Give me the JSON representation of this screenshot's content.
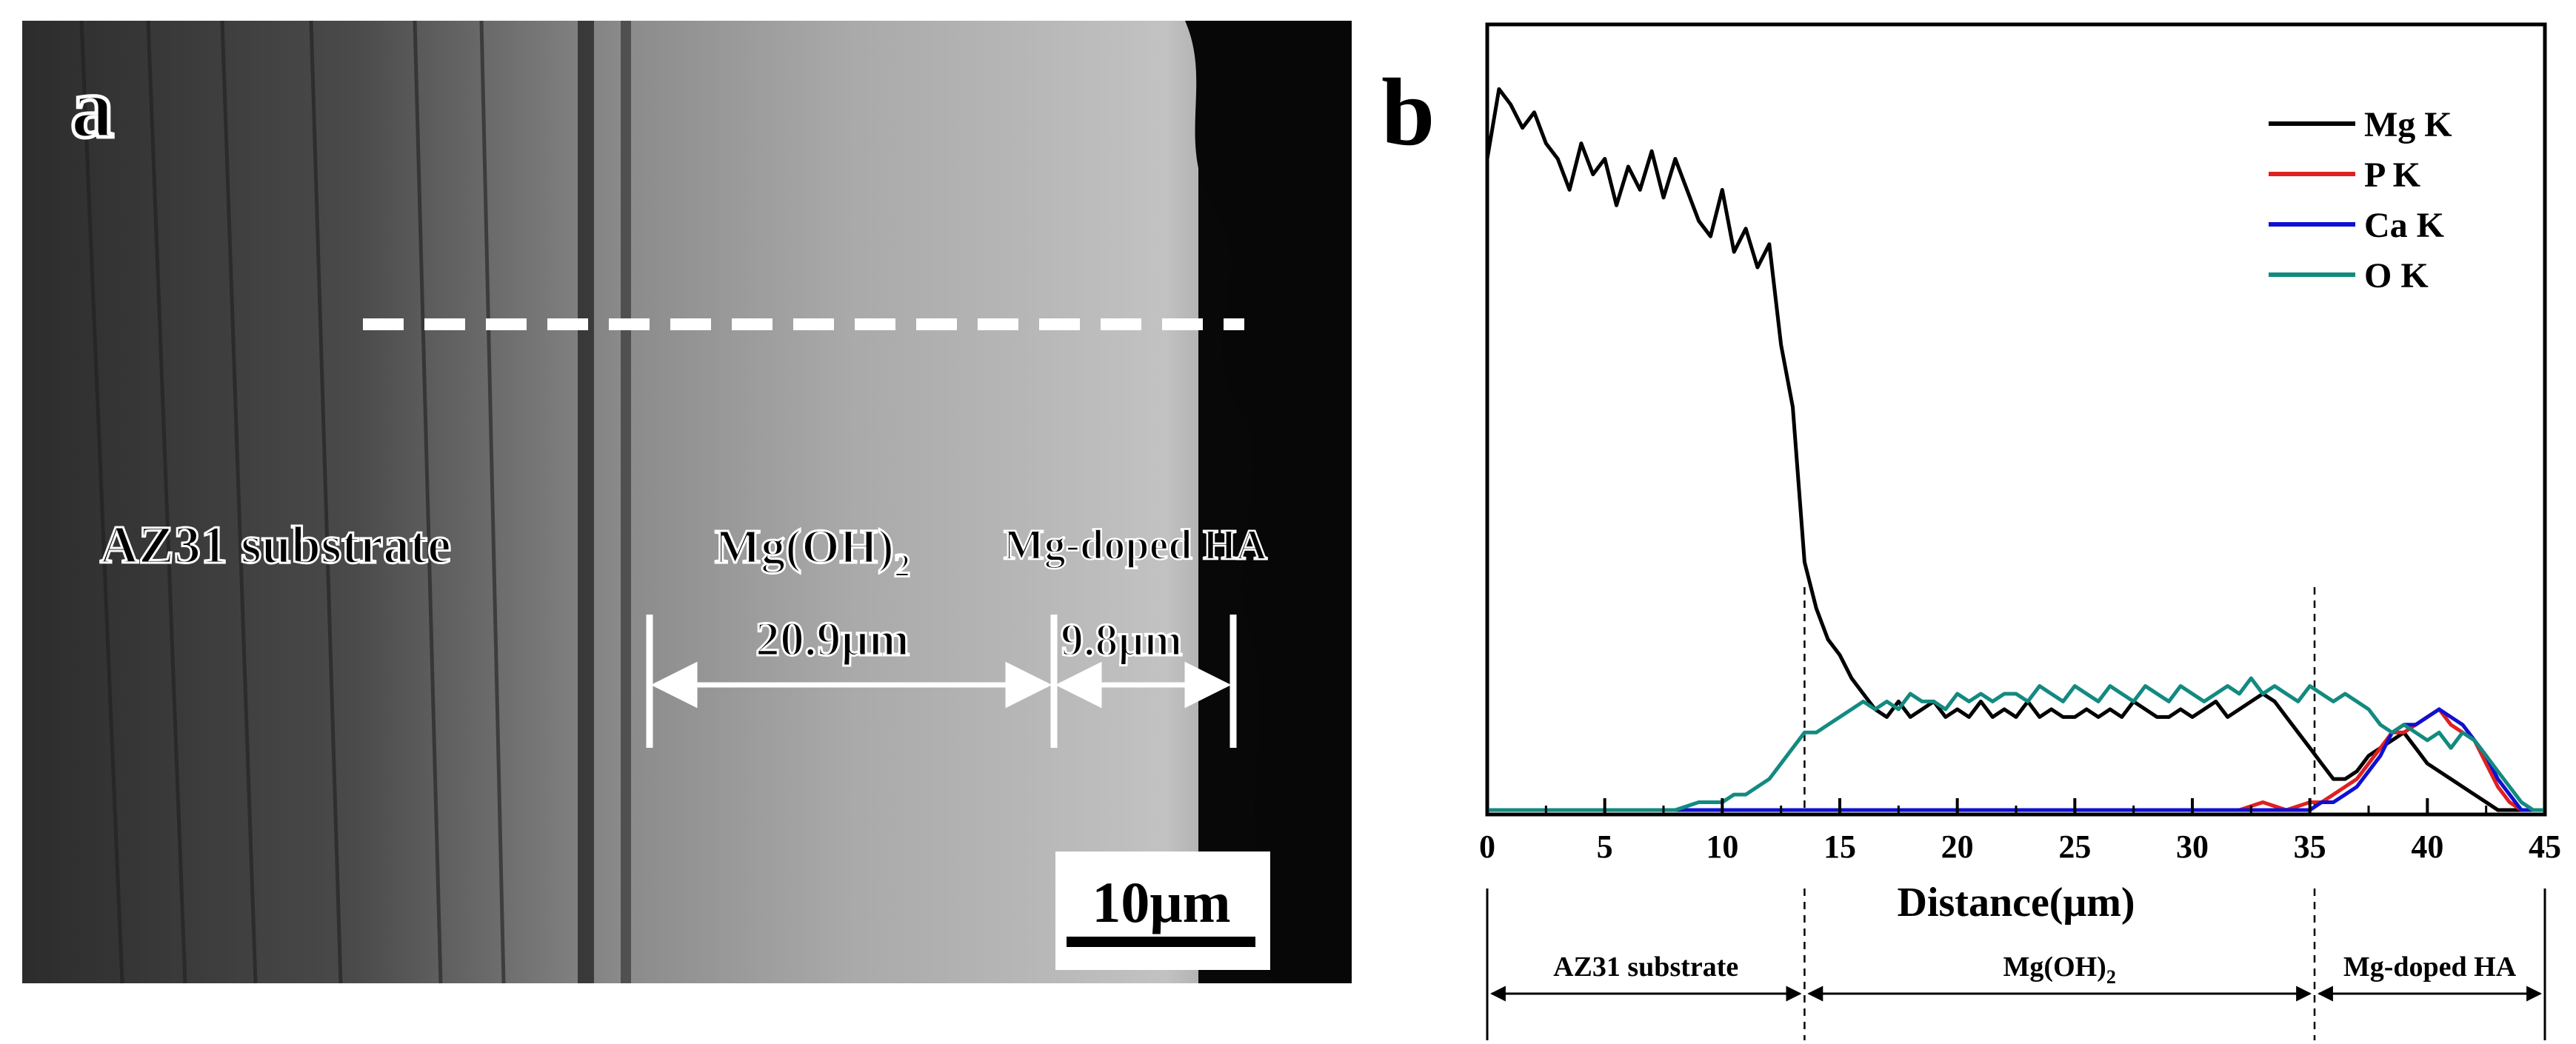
{
  "panel_a": {
    "label": "a",
    "region_substrate": "AZ31 substrate",
    "region_hydroxide_main": "Mg(OH)",
    "region_hydroxide_sub": "2",
    "region_coating": "Mg-doped HA",
    "thickness_hydroxide": "20.9μm",
    "thickness_coating": "9.8μm",
    "scale_bar": "10μm"
  },
  "chart_data": {
    "type": "line",
    "panel_label": "b",
    "title": "",
    "xlabel": "Distance(μm)",
    "ylabel": "",
    "xlim": [
      0,
      45
    ],
    "ylim": [
      0,
      1
    ],
    "x_ticks": [
      "0",
      "5",
      "10",
      "15",
      "20",
      "25",
      "30",
      "35",
      "40",
      "45"
    ],
    "grid": false,
    "legend_position": "top-right",
    "boundaries_um": [
      13.5,
      35.2
    ],
    "regions": [
      {
        "label_main": "AZ31 substrate",
        "label_sub": "",
        "from": 0,
        "to": 13.5
      },
      {
        "label_main": "Mg(OH)",
        "label_sub": "2",
        "from": 13.5,
        "to": 35.2
      },
      {
        "label_main": "Mg-doped HA",
        "label_sub": "",
        "from": 35.2,
        "to": 45
      }
    ],
    "series": [
      {
        "name": "Mg K",
        "color": "#000000",
        "x": [
          0,
          0.5,
          1,
          1.5,
          2,
          2.5,
          3,
          3.5,
          4,
          4.5,
          5,
          5.5,
          6,
          6.5,
          7,
          7.5,
          8,
          8.5,
          9,
          9.5,
          10,
          10.5,
          11,
          11.5,
          12,
          12.5,
          13,
          13.5,
          14,
          14.5,
          15,
          15.5,
          16,
          16.5,
          17,
          17.5,
          18,
          18.5,
          19,
          19.5,
          20,
          20.5,
          21,
          21.5,
          22,
          22.5,
          23,
          23.5,
          24,
          24.5,
          25,
          25.5,
          26,
          26.5,
          27,
          27.5,
          28,
          28.5,
          29,
          29.5,
          30,
          30.5,
          31,
          31.5,
          32,
          32.5,
          33,
          33.5,
          34,
          34.5,
          35,
          35.5,
          36,
          36.5,
          37,
          37.5,
          38,
          38.5,
          39,
          39.5,
          40,
          40.5,
          41,
          41.5,
          42,
          42.5,
          43,
          43.5,
          44,
          44.5,
          45
        ],
        "y": [
          0.84,
          0.93,
          0.91,
          0.88,
          0.9,
          0.86,
          0.84,
          0.8,
          0.86,
          0.82,
          0.84,
          0.78,
          0.83,
          0.8,
          0.85,
          0.79,
          0.84,
          0.8,
          0.76,
          0.74,
          0.8,
          0.72,
          0.75,
          0.7,
          0.73,
          0.6,
          0.52,
          0.32,
          0.26,
          0.22,
          0.2,
          0.17,
          0.15,
          0.13,
          0.12,
          0.14,
          0.12,
          0.13,
          0.14,
          0.12,
          0.13,
          0.12,
          0.14,
          0.12,
          0.13,
          0.12,
          0.14,
          0.12,
          0.13,
          0.12,
          0.12,
          0.13,
          0.12,
          0.13,
          0.12,
          0.14,
          0.13,
          0.12,
          0.12,
          0.13,
          0.12,
          0.13,
          0.14,
          0.12,
          0.13,
          0.14,
          0.15,
          0.14,
          0.12,
          0.1,
          0.08,
          0.06,
          0.04,
          0.04,
          0.05,
          0.07,
          0.08,
          0.09,
          0.1,
          0.08,
          0.06,
          0.05,
          0.04,
          0.03,
          0.02,
          0.01,
          0.0,
          0.0,
          0.0,
          0.0,
          0.0
        ]
      },
      {
        "name": "P K",
        "color": "#e02020",
        "x": [
          0,
          2,
          4,
          6,
          8,
          10,
          12,
          14,
          16,
          18,
          20,
          22,
          24,
          26,
          28,
          30,
          32,
          33,
          34,
          35,
          35.5,
          36,
          36.5,
          37,
          37.5,
          38,
          38.5,
          39,
          39.5,
          40,
          40.5,
          41,
          41.5,
          42,
          42.5,
          43,
          43.5,
          44,
          44.5,
          45
        ],
        "y": [
          0.0,
          0.0,
          0.0,
          0.0,
          0.0,
          0.0,
          0.0,
          0.0,
          0.0,
          0.0,
          0.0,
          0.0,
          0.0,
          0.0,
          0.0,
          0.0,
          0.0,
          0.01,
          0.0,
          0.01,
          0.01,
          0.02,
          0.03,
          0.04,
          0.06,
          0.08,
          0.1,
          0.1,
          0.11,
          0.12,
          0.13,
          0.11,
          0.1,
          0.09,
          0.06,
          0.03,
          0.01,
          0.0,
          0.0,
          0.0
        ]
      },
      {
        "name": "Ca K",
        "color": "#1010d0",
        "x": [
          0,
          2,
          4,
          6,
          8,
          10,
          12,
          14,
          16,
          18,
          20,
          22,
          24,
          26,
          28,
          30,
          32,
          33,
          34,
          35,
          35.5,
          36,
          36.5,
          37,
          37.5,
          38,
          38.5,
          39,
          39.5,
          40,
          40.5,
          41,
          41.5,
          42,
          42.5,
          43,
          43.5,
          44,
          44.5,
          45
        ],
        "y": [
          0.0,
          0.0,
          0.0,
          0.0,
          0.0,
          0.0,
          0.0,
          0.0,
          0.0,
          0.0,
          0.0,
          0.0,
          0.0,
          0.0,
          0.0,
          0.0,
          0.0,
          0.0,
          0.0,
          0.0,
          0.01,
          0.01,
          0.02,
          0.03,
          0.05,
          0.07,
          0.1,
          0.11,
          0.11,
          0.12,
          0.13,
          0.12,
          0.11,
          0.09,
          0.07,
          0.04,
          0.02,
          0.0,
          0.0,
          0.0
        ]
      },
      {
        "name": "O K",
        "color": "#138a80",
        "x": [
          0,
          2,
          4,
          6,
          8,
          9,
          10,
          10.5,
          11,
          11.5,
          12,
          12.5,
          13,
          13.5,
          14,
          14.5,
          15,
          15.5,
          16,
          16.5,
          17,
          17.5,
          18,
          18.5,
          19,
          19.5,
          20,
          20.5,
          21,
          21.5,
          22,
          22.5,
          23,
          23.5,
          24,
          24.5,
          25,
          25.5,
          26,
          26.5,
          27,
          27.5,
          28,
          28.5,
          29,
          29.5,
          30,
          30.5,
          31,
          31.5,
          32,
          32.5,
          33,
          33.5,
          34,
          34.5,
          35,
          35.5,
          36,
          36.5,
          37,
          37.5,
          38,
          38.5,
          39,
          39.5,
          40,
          40.5,
          41,
          41.5,
          42,
          42.5,
          43,
          43.5,
          44,
          44.5,
          45
        ],
        "y": [
          0.0,
          0.0,
          0.0,
          0.0,
          0.0,
          0.01,
          0.01,
          0.02,
          0.02,
          0.03,
          0.04,
          0.06,
          0.08,
          0.1,
          0.1,
          0.11,
          0.12,
          0.13,
          0.14,
          0.13,
          0.14,
          0.13,
          0.15,
          0.14,
          0.14,
          0.13,
          0.15,
          0.14,
          0.15,
          0.14,
          0.15,
          0.15,
          0.14,
          0.16,
          0.15,
          0.14,
          0.16,
          0.15,
          0.14,
          0.16,
          0.15,
          0.14,
          0.16,
          0.15,
          0.14,
          0.16,
          0.15,
          0.14,
          0.15,
          0.16,
          0.15,
          0.17,
          0.15,
          0.16,
          0.15,
          0.14,
          0.16,
          0.15,
          0.14,
          0.15,
          0.14,
          0.13,
          0.11,
          0.1,
          0.11,
          0.1,
          0.09,
          0.1,
          0.08,
          0.1,
          0.09,
          0.07,
          0.05,
          0.03,
          0.01,
          0.0,
          0.0
        ]
      }
    ]
  }
}
